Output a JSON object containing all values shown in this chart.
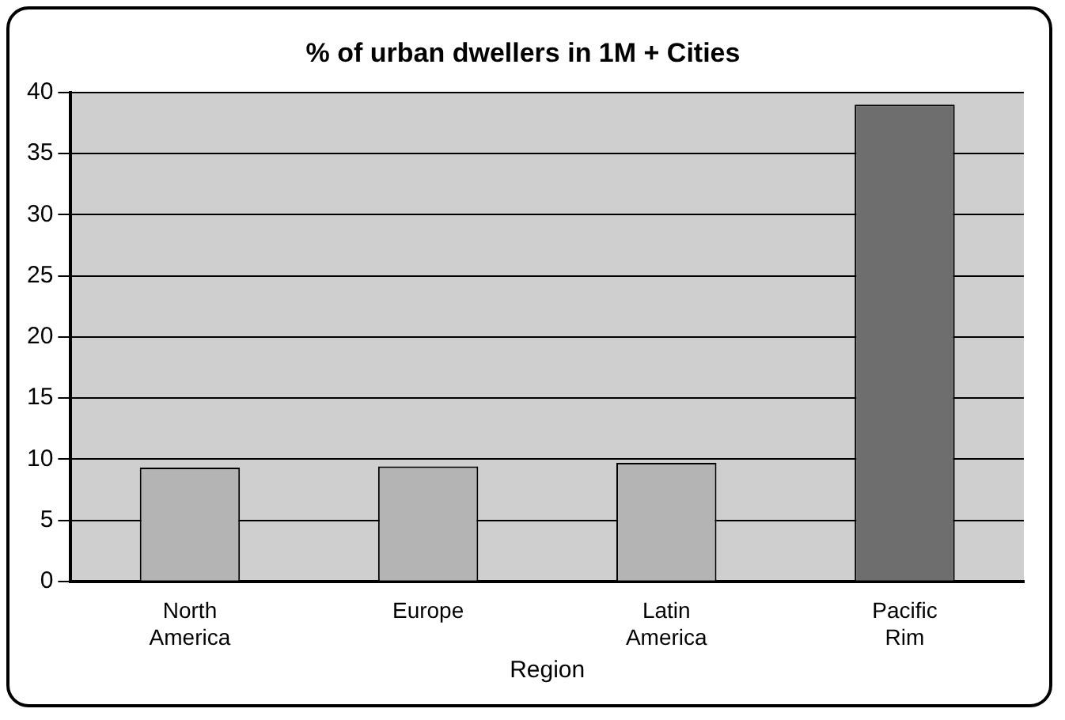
{
  "chart_data": {
    "type": "bar",
    "title": "% of urban dwellers in 1M + Cities",
    "xlabel": "Region",
    "categories": [
      "North America",
      "Europe",
      "Latin America",
      "Pacific Rim"
    ],
    "values": [
      9.3,
      9.4,
      9.7,
      39
    ],
    "colors": [
      "#b4b4b4",
      "#b4b4b4",
      "#b4b4b4",
      "#6e6e6e"
    ],
    "ylim": [
      0,
      40
    ],
    "yticks": [
      0,
      5,
      10,
      15,
      20,
      25,
      30,
      35,
      40
    ],
    "grid": "y",
    "legend": false
  }
}
